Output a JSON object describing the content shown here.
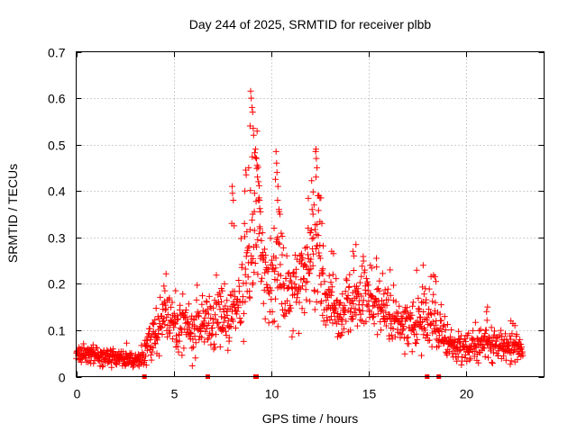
{
  "chart_data": {
    "type": "scatter",
    "title": "Day 244 of 2025, SRMTID for receiver plbb",
    "xlabel": "GPS time / hours",
    "ylabel": "SRMTID / TECUs",
    "xlim": [
      0,
      24
    ],
    "ylim": [
      0,
      0.7
    ],
    "x_ticks": [
      0,
      5,
      10,
      15,
      20
    ],
    "x_tick_labels": [
      "0",
      "5",
      "10",
      "15",
      "20"
    ],
    "y_ticks": [
      0,
      0.1,
      0.2,
      0.3,
      0.4,
      0.5,
      0.6,
      0.7
    ],
    "y_tick_labels": [
      "0",
      "0.1",
      "0.2",
      "0.3",
      "0.4",
      "0.5",
      "0.6",
      "0.7"
    ],
    "grid": true,
    "marker": "+",
    "series_color": "#ff0000",
    "envelope": {
      "x": [
        0,
        0.5,
        1,
        1.5,
        2,
        2.5,
        3,
        3.4,
        3.7,
        4,
        4.3,
        4.6,
        5,
        5.5,
        6,
        6.5,
        7,
        7.5,
        8,
        8.3,
        8.6,
        8.9,
        9.2,
        9.5,
        9.8,
        10.1,
        10.4,
        10.7,
        11,
        11.3,
        11.6,
        11.9,
        12.2,
        12.5,
        12.8,
        13.2,
        13.6,
        14,
        14.4,
        14.8,
        15.2,
        15.6,
        16,
        16.5,
        17,
        17.5,
        18,
        18.3,
        18.6,
        19,
        19.5,
        20,
        20.5,
        21,
        21.5,
        22,
        22.5,
        22.9
      ],
      "center": [
        0.052,
        0.048,
        0.047,
        0.044,
        0.042,
        0.04,
        0.038,
        0.04,
        0.07,
        0.09,
        0.12,
        0.13,
        0.11,
        0.1,
        0.1,
        0.11,
        0.12,
        0.12,
        0.13,
        0.16,
        0.2,
        0.26,
        0.34,
        0.28,
        0.18,
        0.2,
        0.26,
        0.18,
        0.16,
        0.18,
        0.22,
        0.26,
        0.3,
        0.24,
        0.17,
        0.14,
        0.13,
        0.16,
        0.15,
        0.18,
        0.17,
        0.16,
        0.13,
        0.12,
        0.11,
        0.11,
        0.12,
        0.14,
        0.09,
        0.07,
        0.06,
        0.065,
        0.07,
        0.08,
        0.07,
        0.065,
        0.06,
        0.06
      ],
      "spread": [
        0.014,
        0.015,
        0.014,
        0.014,
        0.013,
        0.014,
        0.014,
        0.015,
        0.025,
        0.03,
        0.04,
        0.04,
        0.04,
        0.04,
        0.04,
        0.04,
        0.045,
        0.045,
        0.05,
        0.06,
        0.08,
        0.11,
        0.14,
        0.1,
        0.06,
        0.08,
        0.1,
        0.06,
        0.05,
        0.06,
        0.07,
        0.08,
        0.09,
        0.08,
        0.05,
        0.04,
        0.04,
        0.05,
        0.05,
        0.05,
        0.05,
        0.05,
        0.04,
        0.04,
        0.04,
        0.04,
        0.05,
        0.05,
        0.03,
        0.025,
        0.02,
        0.02,
        0.025,
        0.03,
        0.025,
        0.02,
        0.02,
        0.02
      ]
    },
    "point_count": 1350,
    "random_seed": 24420,
    "spikes": [
      {
        "x": 8.95,
        "y": 0.615
      },
      {
        "x": 8.98,
        "y": 0.6
      },
      {
        "x": 9.02,
        "y": 0.58
      },
      {
        "x": 9.05,
        "y": 0.57
      },
      {
        "x": 8.92,
        "y": 0.54
      },
      {
        "x": 9.08,
        "y": 0.535
      },
      {
        "x": 9.1,
        "y": 0.52
      },
      {
        "x": 9.2,
        "y": 0.49
      },
      {
        "x": 9.25,
        "y": 0.47
      },
      {
        "x": 9.28,
        "y": 0.455
      },
      {
        "x": 8.85,
        "y": 0.45
      },
      {
        "x": 9.3,
        "y": 0.43
      },
      {
        "x": 9.35,
        "y": 0.42
      },
      {
        "x": 9.38,
        "y": 0.385
      },
      {
        "x": 9.4,
        "y": 0.38
      },
      {
        "x": 9.15,
        "y": 0.395
      },
      {
        "x": 8.65,
        "y": 0.4
      },
      {
        "x": 8.72,
        "y": 0.435
      },
      {
        "x": 8.7,
        "y": 0.445
      },
      {
        "x": 9.45,
        "y": 0.355
      },
      {
        "x": 9.05,
        "y": 0.35
      },
      {
        "x": 8.0,
        "y": 0.41
      },
      {
        "x": 8.02,
        "y": 0.395
      },
      {
        "x": 8.06,
        "y": 0.38
      },
      {
        "x": 7.98,
        "y": 0.33
      },
      {
        "x": 8.1,
        "y": 0.325
      },
      {
        "x": 10.25,
        "y": 0.485
      },
      {
        "x": 10.28,
        "y": 0.46
      },
      {
        "x": 10.3,
        "y": 0.44
      },
      {
        "x": 10.22,
        "y": 0.425
      },
      {
        "x": 10.35,
        "y": 0.41
      },
      {
        "x": 10.33,
        "y": 0.38
      },
      {
        "x": 10.4,
        "y": 0.36
      },
      {
        "x": 10.45,
        "y": 0.35
      },
      {
        "x": 12.3,
        "y": 0.49
      },
      {
        "x": 12.28,
        "y": 0.485
      },
      {
        "x": 12.32,
        "y": 0.47
      },
      {
        "x": 12.35,
        "y": 0.45
      },
      {
        "x": 12.3,
        "y": 0.43
      },
      {
        "x": 12.4,
        "y": 0.39
      },
      {
        "x": 12.45,
        "y": 0.39
      },
      {
        "x": 12.5,
        "y": 0.385
      },
      {
        "x": 12.55,
        "y": 0.385
      },
      {
        "x": 12.2,
        "y": 0.37
      },
      {
        "x": 12.1,
        "y": 0.36
      },
      {
        "x": 12.15,
        "y": 0.35
      },
      {
        "x": 11.9,
        "y": 0.32
      },
      {
        "x": 12.0,
        "y": 0.31
      },
      {
        "x": 12.6,
        "y": 0.33
      },
      {
        "x": 13.1,
        "y": 0.27
      },
      {
        "x": 13.2,
        "y": 0.265
      },
      {
        "x": 17.8,
        "y": 0.24
      },
      {
        "x": 14.2,
        "y": 0.27
      },
      {
        "x": 14.25,
        "y": 0.26
      },
      {
        "x": 15.4,
        "y": 0.255
      },
      {
        "x": 4.5,
        "y": 0.195
      },
      {
        "x": 4.55,
        "y": 0.185
      },
      {
        "x": 5.1,
        "y": 0.185
      },
      {
        "x": 7.45,
        "y": 0.19
      },
      {
        "x": 7.5,
        "y": 0.185
      },
      {
        "x": 16.1,
        "y": 0.23
      },
      {
        "x": 18.4,
        "y": 0.215
      },
      {
        "x": 18.45,
        "y": 0.205
      },
      {
        "x": 21.1,
        "y": 0.15
      },
      {
        "x": 21.05,
        "y": 0.14
      },
      {
        "x": 22.3,
        "y": 0.12
      },
      {
        "x": 22.5,
        "y": 0.11
      }
    ],
    "baseline_marks_x": [
      3.5,
      6.75,
      9.2,
      9.25,
      18.0,
      18.6
    ]
  }
}
